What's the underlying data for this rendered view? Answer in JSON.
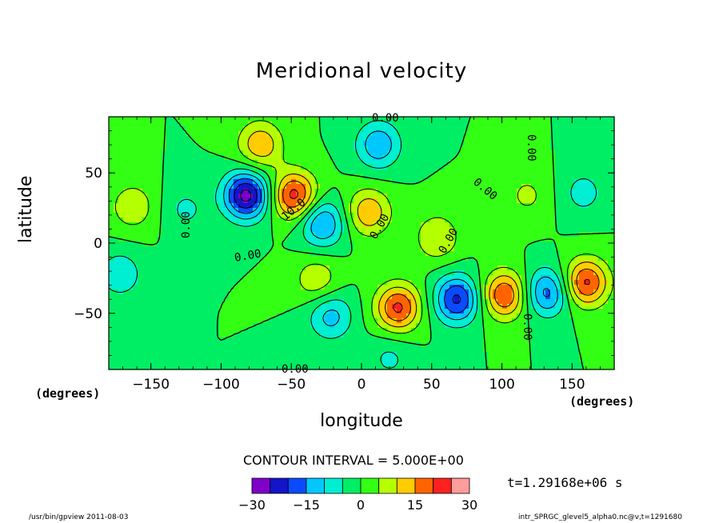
{
  "chart_data": {
    "type": "contour",
    "title": "Meridional velocity",
    "xlabel": "longitude",
    "ylabel": "latitude",
    "x_units": "(degrees)",
    "y_units": "(degrees)",
    "xlim": [
      -180,
      180
    ],
    "ylim": [
      -90,
      90
    ],
    "x_ticks": [
      -150,
      -100,
      -50,
      0,
      50,
      100,
      150
    ],
    "x_tick_labels": [
      "−150",
      "−100",
      "−50",
      "0",
      "50",
      "100",
      "150"
    ],
    "y_ticks": [
      50,
      0,
      -50
    ],
    "y_tick_labels": [
      "50",
      "0",
      "−50"
    ],
    "contour_interval_text": "CONTOUR INTERVAL = 5.000E+00",
    "contour_labels": [
      "0.00",
      "10.0"
    ],
    "colorbar": {
      "levels": [
        -30,
        -25,
        -20,
        -15,
        -10,
        -5,
        0,
        5,
        10,
        15,
        20,
        25,
        30
      ],
      "tick_values": [
        -30,
        -15,
        0,
        15,
        30
      ],
      "tick_labels": [
        "−30",
        "−15",
        "0",
        "15",
        "30"
      ],
      "colors": [
        "#7f00c8",
        "#1414c8",
        "#0a4bff",
        "#00c8ff",
        "#00eed2",
        "#00ee64",
        "#32ff14",
        "#b4ff00",
        "#ffcc00",
        "#ff6400",
        "#ff2020",
        "#ff9c9c"
      ]
    },
    "field_features": [
      {
        "lon": -82,
        "lat": 34,
        "value": -27
      },
      {
        "lon": 12,
        "lat": 70,
        "value": -14
      },
      {
        "lon": -28,
        "lat": 14,
        "value": -16
      },
      {
        "lon": -48,
        "lat": 34,
        "value": 22
      },
      {
        "lon": -72,
        "lat": 70,
        "value": 14
      },
      {
        "lon": 5,
        "lat": 22,
        "value": 14
      },
      {
        "lon": -163,
        "lat": 26,
        "value": 9
      },
      {
        "lon": -125,
        "lat": 24,
        "value": -6
      },
      {
        "lon": -172,
        "lat": -22,
        "value": -9
      },
      {
        "lon": -32,
        "lat": -26,
        "value": 9
      },
      {
        "lon": -22,
        "lat": -52,
        "value": -12
      },
      {
        "lon": 26,
        "lat": -46,
        "value": 21
      },
      {
        "lon": 54,
        "lat": 4,
        "value": 10
      },
      {
        "lon": 68,
        "lat": -40,
        "value": -21
      },
      {
        "lon": 102,
        "lat": -37,
        "value": 20
      },
      {
        "lon": 132,
        "lat": -35,
        "value": -17
      },
      {
        "lon": 160,
        "lat": -28,
        "value": 21
      },
      {
        "lon": 158,
        "lat": 36,
        "value": -7
      },
      {
        "lon": 118,
        "lat": 34,
        "value": 6
      },
      {
        "lon": 20,
        "lat": -82,
        "value": -6
      }
    ]
  },
  "time_label": "t=1.29168e+06 s",
  "footer": {
    "left": "/usr/bin/gpview   2011-08-03",
    "right": "intr_SPRGC_glevel5_alpha0.nc@v,t=1291680"
  }
}
